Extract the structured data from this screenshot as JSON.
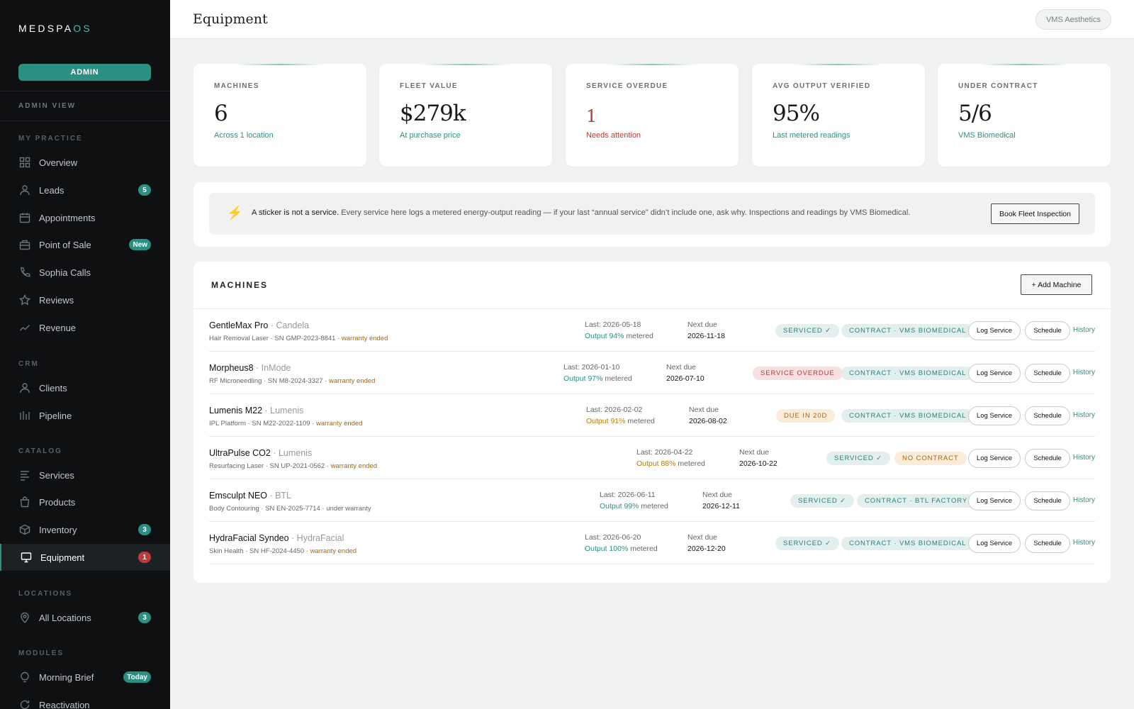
{
  "app": {
    "logo_main": "MEDSPA",
    "logo_accent": "OS",
    "admin_button": "ADMIN",
    "view_label": "ADMIN VIEW"
  },
  "sidebar": {
    "sections": {
      "my_practice": "MY PRACTICE",
      "crm": "CRM",
      "catalog": "CATALOG",
      "locations": "LOCATIONS",
      "modules": "MODULES"
    },
    "items": [
      {
        "label": "Overview",
        "icon": "grid-icon"
      },
      {
        "label": "Leads",
        "icon": "user-icon",
        "badge": "5"
      },
      {
        "label": "Appointments",
        "icon": "calendar-icon"
      },
      {
        "label": "Point of Sale",
        "icon": "register-icon",
        "badge": "New"
      },
      {
        "label": "Sophia Calls",
        "icon": "phone-icon"
      },
      {
        "label": "Reviews",
        "icon": "star-icon"
      },
      {
        "label": "Revenue",
        "icon": "trend-icon"
      },
      {
        "label": "Clients",
        "icon": "user-icon"
      },
      {
        "label": "Pipeline",
        "icon": "bars-icon"
      },
      {
        "label": "Services",
        "icon": "services-icon"
      },
      {
        "label": "Products",
        "icon": "bag-icon"
      },
      {
        "label": "Inventory",
        "icon": "box-icon",
        "badge": "3"
      },
      {
        "label": "Equipment",
        "icon": "monitor-icon",
        "badge": "1",
        "active": true
      },
      {
        "label": "All Locations",
        "icon": "pin-icon",
        "badge": "3"
      },
      {
        "label": "Morning Brief",
        "icon": "bulb-icon",
        "badge": "Today"
      },
      {
        "label": "Reactivation",
        "icon": "refresh-icon"
      }
    ]
  },
  "header": {
    "title": "Equipment",
    "org": "VMS Aesthetics"
  },
  "stats": [
    {
      "label": "MACHINES",
      "value": "6",
      "sub": "Across 1 location"
    },
    {
      "label": "FLEET VALUE",
      "value": "$279k",
      "sub": "At purchase price"
    },
    {
      "label": "SERVICE OVERDUE",
      "value": "1",
      "sub": "Needs attention"
    },
    {
      "label": "AVG OUTPUT VERIFIED",
      "value": "95%",
      "sub": "Last metered readings"
    },
    {
      "label": "UNDER CONTRACT",
      "value": "5/6",
      "sub": "VMS Biomedical"
    }
  ],
  "notice": {
    "bold": "A sticker is not a service.",
    "text": " Every service here logs a metered energy-output reading — if your last “annual service” didn’t include one, ask why. Inspections and readings by VMS Biomedical.",
    "button": "Book Fleet Inspection"
  },
  "machines": {
    "title": "MACHINES",
    "add_button": "+ Add Machine",
    "labels": {
      "log": "Log Service",
      "schedule": "Schedule",
      "history": "History",
      "next_due": "Next due",
      "metered": " metered"
    },
    "rows": [
      {
        "name": "GentleMax Pro",
        "brand": " · Candela",
        "sub": "Hair Removal Laser · SN GMP-2023-8841 · ",
        "warranty": "warranty ended",
        "last": "Last: 2026-05-18",
        "output": "Output 94%",
        "next": "2026-11-18",
        "status": "SERVICED ✓",
        "contract": "CONTRACT · VMS BIOMEDICAL"
      },
      {
        "name": "Morpheus8",
        "brand": " · InMode",
        "sub": "RF Microneedling · SN M8-2024-3327 · ",
        "warranty": "warranty ended",
        "last": "Last: 2026-01-10",
        "output": "Output 97%",
        "next": "2026-07-10",
        "status": "SERVICE OVERDUE",
        "contract": "CONTRACT · VMS BIOMEDICAL"
      },
      {
        "name": "Lumenis M22",
        "brand": " · Lumenis",
        "sub": "IPL Platform · SN M22-2022-1109 · ",
        "warranty": "warranty ended",
        "last": "Last: 2026-02-02",
        "output": "Output 91%",
        "next": "2026-08-02",
        "status": "DUE IN 20D",
        "contract": "CONTRACT · VMS BIOMEDICAL"
      },
      {
        "name": "UltraPulse CO2",
        "brand": " · Lumenis",
        "sub": "Resurfacing Laser · SN UP-2021-0562 · ",
        "warranty": "warranty ended",
        "last": "Last: 2026-04-22",
        "output": "Output 88%",
        "next": "2026-10-22",
        "status": "SERVICED ✓",
        "contract": "NO CONTRACT"
      },
      {
        "name": "Emsculpt NEO",
        "brand": " · BTL",
        "sub": "Body Contouring · SN EN-2025-7714 · ",
        "warranty": "under warranty",
        "last": "Last: 2026-06-11",
        "output": "Output 99%",
        "next": "2026-12-11",
        "status": "SERVICED ✓",
        "contract": "CONTRACT · BTL FACTORY"
      },
      {
        "name": "HydraFacial Syndeo",
        "brand": " · HydraFacial",
        "sub": "Skin Health · SN HF-2024-4450 · ",
        "warranty": "warranty ended",
        "last": "Last: 2026-06-20",
        "output": "Output 100%",
        "next": "2026-12-20",
        "status": "SERVICED ✓",
        "contract": "CONTRACT · VMS BIOMEDICAL"
      }
    ]
  },
  "colors": {
    "accent": "#2c8f83",
    "danger": "#b43a36",
    "amber": "#b87a00",
    "sidebar_bg": "#0f1012"
  }
}
